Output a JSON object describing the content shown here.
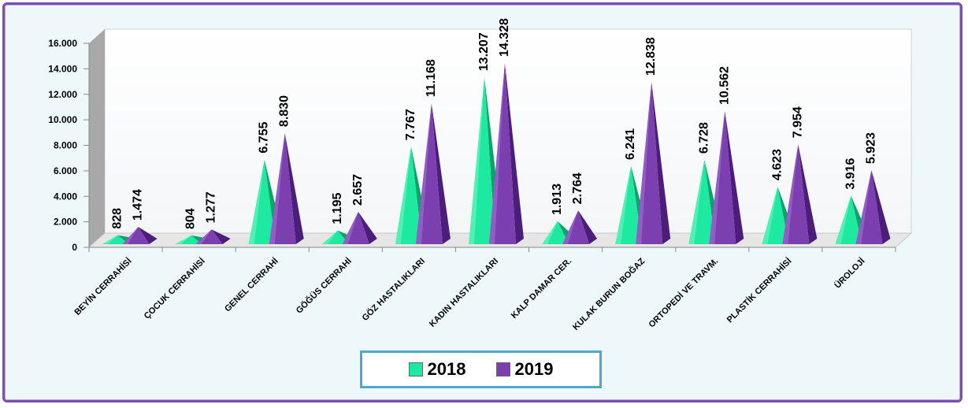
{
  "chart_data": {
    "type": "bar",
    "categories": [
      "BEYİN CERRAHİSİ",
      "ÇOCUK CERRAHİSİ",
      "GENEL CERRAHİ",
      "GÖĞÜS CERRAHİ",
      "GÖZ HASTALIKLARI",
      "KADIN HASTALIKLARI",
      "KALP DAMAR CER.",
      "KULAK BURUN BOĞAZ",
      "ORTOPEDİ VE TRAVM.",
      "PLASTİK CERRAHİSİ",
      "ÜROLOJİ"
    ],
    "series": [
      {
        "name": "2018",
        "color": "#1de9a0",
        "values": [
          828,
          804,
          6755,
          1195,
          7767,
          13207,
          1913,
          6241,
          6728,
          4623,
          3916
        ],
        "labels": [
          "828",
          "804",
          "6.755",
          "1.195",
          "7.767",
          "13.207",
          "1.913",
          "6.241",
          "6.728",
          "4.623",
          "3.916"
        ]
      },
      {
        "name": "2019",
        "color": "#7b3fb0",
        "values": [
          1474,
          1277,
          8830,
          2657,
          11168,
          14328,
          2764,
          12838,
          10562,
          7954,
          5923
        ],
        "labels": [
          "1.474",
          "1.277",
          "8.830",
          "2.657",
          "11.168",
          "14.328",
          "2.764",
          "12.838",
          "10.562",
          "7.954",
          "5.923"
        ]
      }
    ],
    "ylim": [
      0,
      16000
    ],
    "yticks": [
      0,
      2000,
      4000,
      6000,
      8000,
      10000,
      12000,
      14000,
      16000
    ],
    "ytick_labels": [
      "0",
      "2.000",
      "4.000",
      "6.000",
      "8.000",
      "10.000",
      "12.000",
      "14.000",
      "16.000"
    ],
    "legend_position": "bottom",
    "grid": false,
    "style": "3d-pyramid"
  }
}
